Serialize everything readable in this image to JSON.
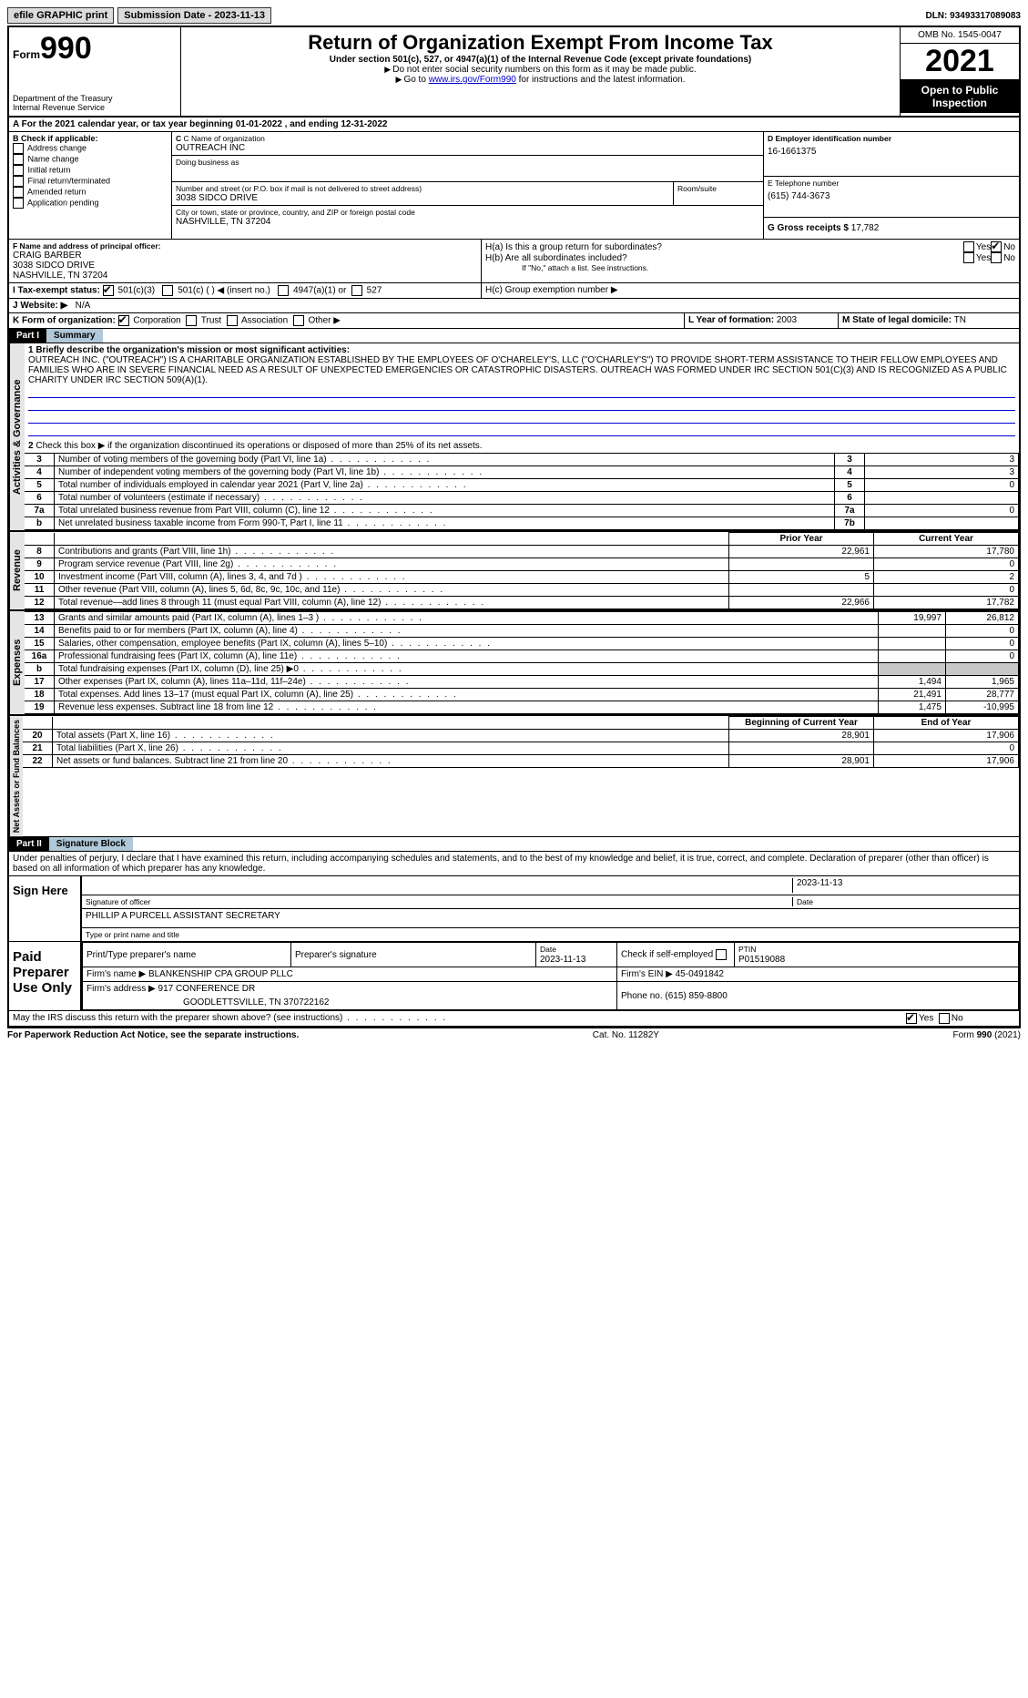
{
  "topbar": {
    "efile": "efile GRAPHIC print",
    "submission_label": "Submission Date - 2023-11-13",
    "dln": "DLN: 93493317089083"
  },
  "hdr": {
    "form": "Form",
    "form_no": "990",
    "dept": "Department of the Treasury",
    "irs": "Internal Revenue Service",
    "title": "Return of Organization Exempt From Income Tax",
    "sub": "Under section 501(c), 527, or 4947(a)(1) of the Internal Revenue Code (except private foundations)",
    "note1": "Do not enter social security numbers on this form as it may be made public.",
    "note2a": "Go to ",
    "note2_link": "www.irs.gov/Form990",
    "note2b": " for instructions and the latest information.",
    "omb": "OMB No. 1545-0047",
    "year": "2021",
    "open": "Open to Public Inspection"
  },
  "a": {
    "text": "For the 2021 calendar year, or tax year beginning ",
    "begin": "01-01-2022",
    "mid": " , and ending ",
    "end": "12-31-2022"
  },
  "b": {
    "hdr": "B Check if applicable:",
    "opts": [
      "Address change",
      "Name change",
      "Initial return",
      "Final return/terminated",
      "Amended return",
      "Application pending"
    ]
  },
  "c": {
    "name_lbl": "C Name of organization",
    "name": "OUTREACH INC",
    "dba_lbl": "Doing business as",
    "street_lbl": "Number and street (or P.O. box if mail is not delivered to street address)",
    "room_lbl": "Room/suite",
    "street": "3038 SIDCO DRIVE",
    "city_lbl": "City or town, state or province, country, and ZIP or foreign postal code",
    "city": "NASHVILLE, TN  37204"
  },
  "d": {
    "lbl": "D Employer identification number",
    "val": "16-1661375"
  },
  "e": {
    "lbl": "E Telephone number",
    "val": "(615) 744-3673"
  },
  "g": {
    "lbl": "G Gross receipts $",
    "val": "17,782"
  },
  "f": {
    "lbl": "F  Name and address of principal officer:",
    "name": "CRAIG BARBER",
    "street": "3038 SIDCO DRIVE",
    "city": "NASHVILLE, TN  37204"
  },
  "h": {
    "a": "H(a)  Is this a group return for subordinates?",
    "b": "H(b)  Are all subordinates included?",
    "note": "If \"No,\" attach a list. See instructions.",
    "c": "H(c)  Group exemption number ▶",
    "yes": "Yes",
    "no": "No"
  },
  "i": {
    "lbl": "I    Tax-exempt status:",
    "o1": "501(c)(3)",
    "o2": "501(c) (  ) ◀ (insert no.)",
    "o3": "4947(a)(1) or",
    "o4": "527"
  },
  "j": {
    "lbl": "J   Website: ▶",
    "val": "N/A"
  },
  "k": {
    "lbl": "K Form of organization:",
    "o1": "Corporation",
    "o2": "Trust",
    "o3": "Association",
    "o4": "Other ▶"
  },
  "l": {
    "lbl": "L Year of formation:",
    "val": "2003"
  },
  "m": {
    "lbl": "M State of legal domicile:",
    "val": "TN"
  },
  "part1": {
    "hdr": "Part I",
    "title": "Summary"
  },
  "sidelabels": {
    "ag": "Activities & Governance",
    "rev": "Revenue",
    "exp": "Expenses",
    "nab": "Net Assets or Fund Balances"
  },
  "summary": {
    "l1_lbl": "1  Briefly describe the organization's mission or most significant activities:",
    "l1_text": "OUTREACH INC. (\"OUTREACH\") IS A CHARITABLE ORGANIZATION ESTABLISHED BY THE EMPLOYEES OF O'CHARELEY'S, LLC (\"O'CHARLEY'S\") TO PROVIDE SHORT-TERM ASSISTANCE TO THEIR FELLOW EMPLOYEES AND FAMILIES WHO ARE IN SEVERE FINANCIAL NEED AS A RESULT OF UNEXPECTED EMERGENCIES OR CATASTROPHIC DISASTERS. OUTREACH WAS FORMED UNDER IRC SECTION 501(C)(3) AND IS RECOGNIZED AS A PUBLIC CHARITY UNDER IRC SECTION 509(A)(1).",
    "l2": "Check this box ▶      if the organization discontinued its operations or disposed of more than 25% of its net assets.",
    "lines_ag": [
      {
        "n": "2",
        "t": "",
        "box": "",
        "v": ""
      },
      {
        "n": "3",
        "t": "Number of voting members of the governing body (Part VI, line 1a)",
        "box": "3",
        "v": "3"
      },
      {
        "n": "4",
        "t": "Number of independent voting members of the governing body (Part VI, line 1b)",
        "box": "4",
        "v": "3"
      },
      {
        "n": "5",
        "t": "Total number of individuals employed in calendar year 2021 (Part V, line 2a)",
        "box": "5",
        "v": "0"
      },
      {
        "n": "6",
        "t": "Total number of volunteers (estimate if necessary)",
        "box": "6",
        "v": ""
      },
      {
        "n": "7a",
        "t": "Total unrelated business revenue from Part VIII, column (C), line 12",
        "box": "7a",
        "v": "0"
      },
      {
        "n": "b",
        "t": "Net unrelated business taxable income from Form 990-T, Part I, line 11",
        "box": "7b",
        "v": ""
      }
    ],
    "pycy_hdr": {
      "py": "Prior Year",
      "cy": "Current Year"
    },
    "lines_rev": [
      {
        "n": "8",
        "t": "Contributions and grants (Part VIII, line 1h)",
        "py": "22,961",
        "cy": "17,780"
      },
      {
        "n": "9",
        "t": "Program service revenue (Part VIII, line 2g)",
        "py": "",
        "cy": "0"
      },
      {
        "n": "10",
        "t": "Investment income (Part VIII, column (A), lines 3, 4, and 7d )",
        "py": "5",
        "cy": "2"
      },
      {
        "n": "11",
        "t": "Other revenue (Part VIII, column (A), lines 5, 6d, 8c, 9c, 10c, and 11e)",
        "py": "",
        "cy": "0"
      },
      {
        "n": "12",
        "t": "Total revenue—add lines 8 through 11 (must equal Part VIII, column (A), line 12)",
        "py": "22,966",
        "cy": "17,782"
      }
    ],
    "lines_exp": [
      {
        "n": "13",
        "t": "Grants and similar amounts paid (Part IX, column (A), lines 1–3 )",
        "py": "19,997",
        "cy": "26,812"
      },
      {
        "n": "14",
        "t": "Benefits paid to or for members (Part IX, column (A), line 4)",
        "py": "",
        "cy": "0"
      },
      {
        "n": "15",
        "t": "Salaries, other compensation, employee benefits (Part IX, column (A), lines 5–10)",
        "py": "",
        "cy": "0"
      },
      {
        "n": "16a",
        "t": "Professional fundraising fees (Part IX, column (A), line 11e)",
        "py": "",
        "cy": "0"
      },
      {
        "n": "b",
        "t": "Total fundraising expenses (Part IX, column (D), line 25) ▶0",
        "py": "GRAY",
        "cy": "GRAY"
      },
      {
        "n": "17",
        "t": "Other expenses (Part IX, column (A), lines 11a–11d, 11f–24e)",
        "py": "1,494",
        "cy": "1,965"
      },
      {
        "n": "18",
        "t": "Total expenses. Add lines 13–17 (must equal Part IX, column (A), line 25)",
        "py": "21,491",
        "cy": "28,777"
      },
      {
        "n": "19",
        "t": "Revenue less expenses. Subtract line 18 from line 12",
        "py": "1,475",
        "cy": "-10,995"
      }
    ],
    "bocy_hdr": {
      "b": "Beginning of Current Year",
      "e": "End of Year"
    },
    "lines_nab": [
      {
        "n": "20",
        "t": "Total assets (Part X, line 16)",
        "py": "28,901",
        "cy": "17,906"
      },
      {
        "n": "21",
        "t": "Total liabilities (Part X, line 26)",
        "py": "",
        "cy": "0"
      },
      {
        "n": "22",
        "t": "Net assets or fund balances. Subtract line 21 from line 20",
        "py": "28,901",
        "cy": "17,906"
      }
    ]
  },
  "part2": {
    "hdr": "Part II",
    "title": "Signature Block"
  },
  "sig": {
    "decl": "Under penalties of perjury, I declare that I have examined this return, including accompanying schedules and statements, and to the best of my knowledge and belief, it is true, correct, and complete. Declaration of preparer (other than officer) is based on all information of which preparer has any knowledge.",
    "sign_here": "Sign Here",
    "sig_of": "Signature of officer",
    "date_lbl": "Date",
    "date": "2023-11-13",
    "name": "PHILLIP A PURCELL  ASSISTANT SECRETARY",
    "name_lbl": "Type or print name and title"
  },
  "prep": {
    "hdr": "Paid Preparer Use Only",
    "name_lbl": "Print/Type preparer's name",
    "sig_lbl": "Preparer's signature",
    "date_lbl": "Date",
    "date": "2023-11-13",
    "self_emp": "Check        if self-employed",
    "ptin_lbl": "PTIN",
    "ptin": "P01519088",
    "firm_lbl": "Firm's name   ▶",
    "firm": "BLANKENSHIP CPA GROUP PLLC",
    "ein_lbl": "Firm's EIN ▶",
    "ein": "45-0491842",
    "addr_lbl": "Firm's address ▶",
    "addr1": "917 CONFERENCE DR",
    "addr2": "GOODLETTSVILLE, TN  370722162",
    "phone_lbl": "Phone no.",
    "phone": "(615) 859-8800"
  },
  "may": "May the IRS discuss this return with the preparer shown above? (see instructions)",
  "foot": {
    "l": "For Paperwork Reduction Act Notice, see the separate instructions.",
    "m": "Cat. No. 11282Y",
    "r": "Form 990 (2021)"
  }
}
